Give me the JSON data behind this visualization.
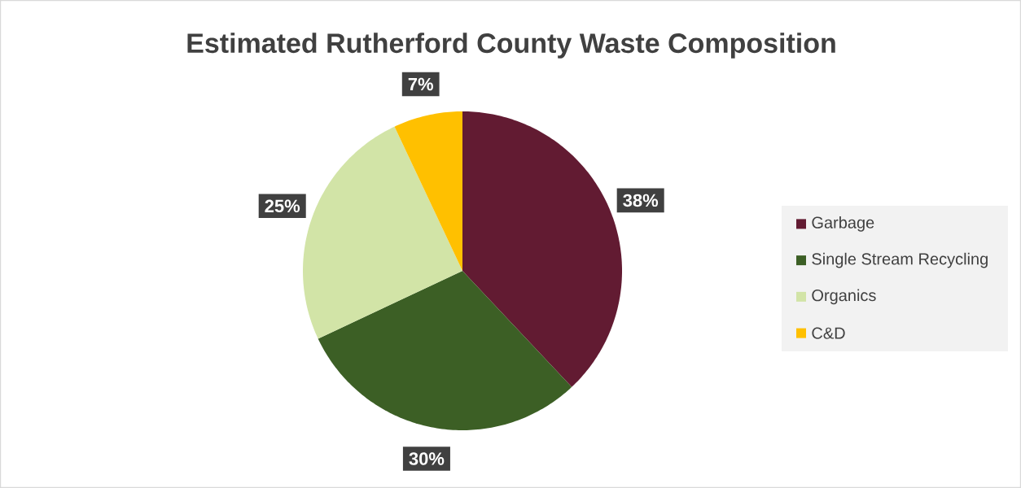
{
  "chart_data": {
    "type": "pie",
    "title": "Estimated Rutherford County Waste Composition",
    "categories": [
      "Garbage",
      "Single Stream Recycling",
      "Organics",
      "C&D"
    ],
    "values": [
      38,
      30,
      25,
      7
    ],
    "value_labels": [
      "38%",
      "30%",
      "25%",
      "7%"
    ],
    "colors": [
      "#621b32",
      "#3c5f25",
      "#d2e4a7",
      "#ffc000"
    ],
    "legend": "right"
  }
}
